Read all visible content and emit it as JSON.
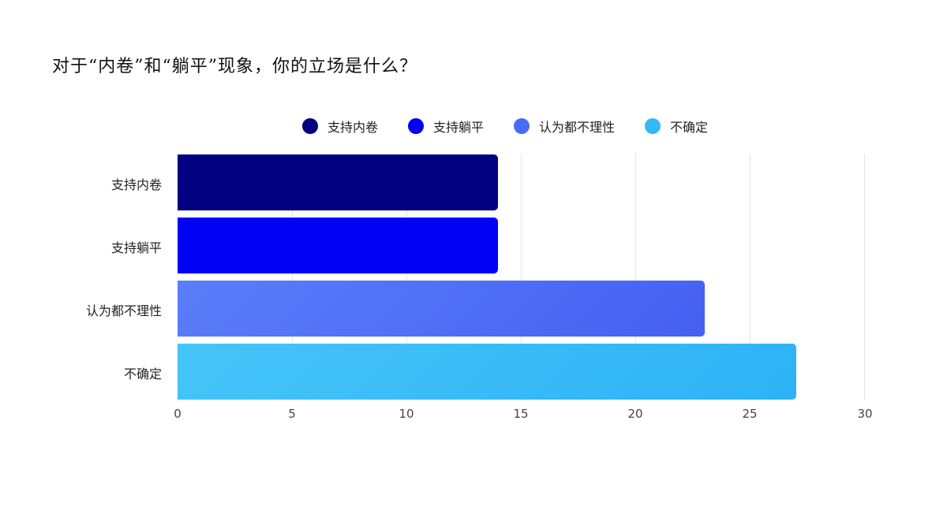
{
  "title": "对于“内卷”和“躺平”现象，你的立场是什么？",
  "legend": [
    {
      "label": "支持内卷",
      "color": "#000080"
    },
    {
      "label": "支持躺平",
      "color": "#0000F5"
    },
    {
      "label": "认为都不理性",
      "color": "#4A6CF5"
    },
    {
      "label": "不确定",
      "color": "#35B8F5"
    }
  ],
  "chart_data": {
    "type": "bar",
    "orientation": "horizontal",
    "title": "对于“内卷”和“躺平”现象，你的立场是什么？",
    "categories": [
      "支持内卷",
      "支持躺平",
      "认为都不理性",
      "不确定"
    ],
    "values": [
      14,
      14,
      23,
      27
    ],
    "colors": [
      "#000080",
      "#0000F5",
      "#4A6CF5",
      "#35B8F5"
    ],
    "xlabel": "",
    "ylabel": "",
    "xlim": [
      0,
      30
    ],
    "x_ticks": [
      "0",
      "5",
      "10",
      "15",
      "20",
      "25",
      "30"
    ],
    "grid": true,
    "legend_position": "top"
  }
}
